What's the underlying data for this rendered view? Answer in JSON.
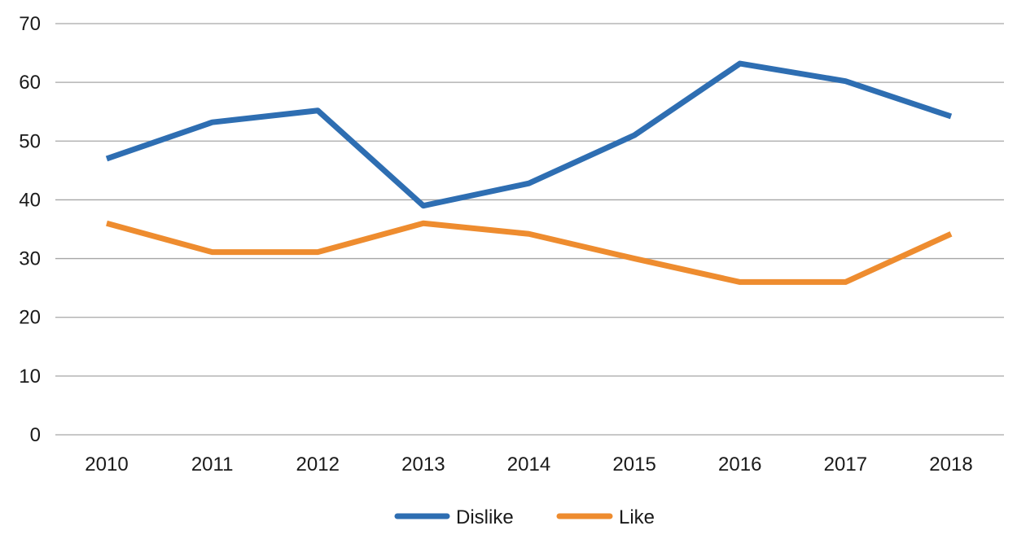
{
  "chart_data": {
    "type": "line",
    "title": "",
    "xlabel": "",
    "ylabel": "",
    "categories": [
      "2010",
      "2011",
      "2012",
      "2013",
      "2014",
      "2015",
      "2016",
      "2017",
      "2018"
    ],
    "series": [
      {
        "name": "Dislike",
        "color": "#2e6eb2",
        "values": [
          47,
          53.2,
          55.2,
          39,
          42.8,
          51,
          63.2,
          60.2,
          54.2
        ]
      },
      {
        "name": "Like",
        "color": "#ee8c2f",
        "values": [
          36,
          31.1,
          31.1,
          36,
          34.2,
          30,
          26,
          26,
          34.2
        ]
      }
    ],
    "ylim": [
      0,
      70
    ],
    "yticks": [
      0,
      10,
      20,
      30,
      40,
      50,
      60,
      70
    ],
    "grid": true,
    "legend": "bottom-center"
  }
}
